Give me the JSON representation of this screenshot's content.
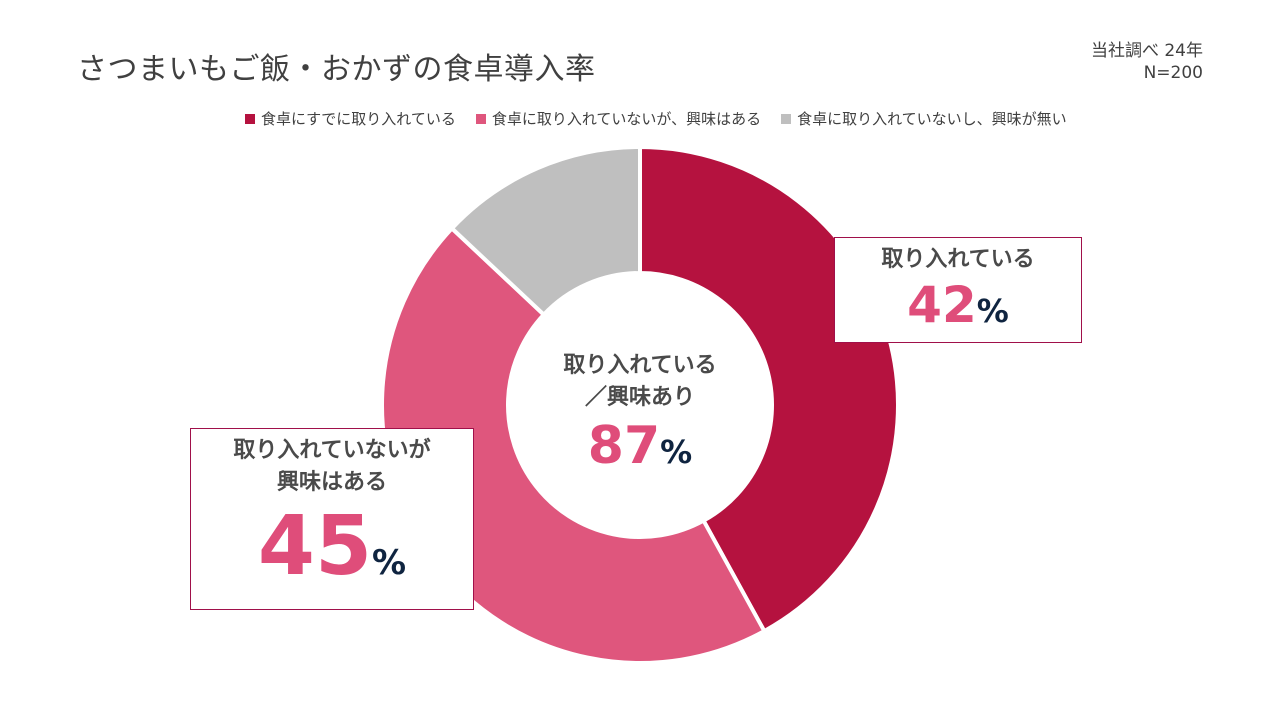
{
  "title": "さつまいもご飯・おかずの食卓導入率",
  "note": {
    "line1": "当社調べ  24年",
    "line2": "N=200"
  },
  "legend": [
    {
      "label": "食卓にすでに取り入れている",
      "color": "#b5123f"
    },
    {
      "label": "食卓に取り入れていないが、興味はある",
      "color": "#df567d"
    },
    {
      "label": "食卓に取り入れていないし、興味が無い",
      "color": "#bfbfbf"
    }
  ],
  "center": {
    "line1": "取り入れている",
    "line2": "／興味あり",
    "value": "87",
    "unit": "%"
  },
  "callout_right": {
    "label": "取り入れている",
    "value": "42",
    "unit": "%"
  },
  "callout_left": {
    "line1": "取り入れていないが",
    "line2": "興味はある",
    "value": "45",
    "unit": "%"
  },
  "chart_data": {
    "type": "pie",
    "hole": true,
    "categories": [
      "食卓にすでに取り入れている",
      "食卓に取り入れていないが、興味はある",
      "食卓に取り入れていないし、興味が無い"
    ],
    "values": [
      42,
      45,
      13
    ],
    "colors": [
      "#b5123f",
      "#df567d",
      "#bfbfbf"
    ],
    "title": "さつまいもご飯・おかずの食卓導入率",
    "legend": "top"
  }
}
